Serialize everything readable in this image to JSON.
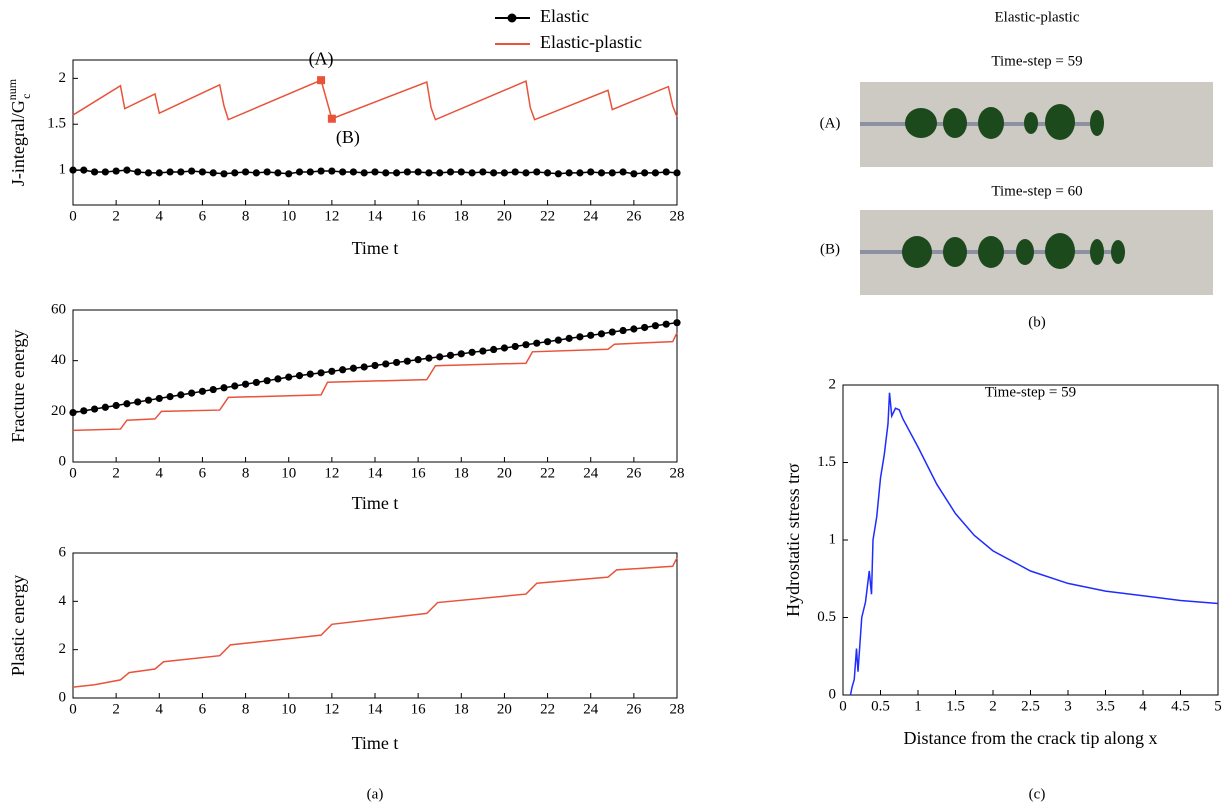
{
  "chart_data": [
    {
      "type": "line",
      "panel": "a",
      "ylabel": {
        "text": "J-integral/G",
        "sub": "c",
        "sup": "num"
      },
      "xlabel": "Time t",
      "xlim": [
        0,
        28
      ],
      "xticks": [
        0,
        2,
        4,
        6,
        8,
        10,
        12,
        14,
        16,
        18,
        20,
        22,
        24,
        26,
        28
      ],
      "ylim": [
        0.62,
        2.2
      ],
      "yticks": [
        1,
        1.5,
        2
      ],
      "legend": true,
      "series": [
        {
          "name": "Elastic",
          "color": "#000000",
          "marker": "circle",
          "x": [
            0,
            0.5,
            1,
            1.5,
            2,
            2.5,
            3,
            3.5,
            4,
            4.5,
            5,
            5.5,
            6,
            6.5,
            7,
            7.5,
            8,
            8.5,
            9,
            9.5,
            10,
            10.5,
            11,
            11.5,
            12,
            12.5,
            13,
            13.5,
            14,
            14.5,
            15,
            15.5,
            16,
            16.5,
            17,
            17.5,
            18,
            18.5,
            19,
            19.5,
            20,
            20.5,
            21,
            21.5,
            22,
            22.5,
            23,
            23.5,
            24,
            24.5,
            25,
            25.5,
            26,
            26.5,
            27,
            27.5,
            28
          ],
          "values": [
            1.0,
            1.0,
            0.98,
            0.98,
            0.99,
            1.0,
            0.98,
            0.97,
            0.97,
            0.98,
            0.98,
            0.99,
            0.98,
            0.97,
            0.96,
            0.97,
            0.98,
            0.97,
            0.98,
            0.97,
            0.96,
            0.98,
            0.98,
            0.99,
            0.99,
            0.98,
            0.98,
            0.97,
            0.98,
            0.97,
            0.97,
            0.98,
            0.98,
            0.97,
            0.97,
            0.98,
            0.98,
            0.97,
            0.98,
            0.97,
            0.97,
            0.98,
            0.97,
            0.98,
            0.97,
            0.96,
            0.97,
            0.97,
            0.98,
            0.97,
            0.97,
            0.98,
            0.96,
            0.97,
            0.97,
            0.98,
            0.97
          ]
        },
        {
          "name": "Elastic-plastic",
          "color": "#e8533a",
          "x": [
            0,
            2.2,
            2.4,
            3.8,
            4.0,
            6.8,
            7.0,
            7.2,
            11.5,
            12.0,
            16.4,
            16.6,
            16.8,
            21.0,
            21.2,
            21.4,
            24.8,
            25.0,
            27.6,
            27.8,
            28
          ],
          "values": [
            1.6,
            1.92,
            1.67,
            1.83,
            1.62,
            1.93,
            1.7,
            1.55,
            1.98,
            1.56,
            1.96,
            1.68,
            1.55,
            1.97,
            1.68,
            1.55,
            1.87,
            1.66,
            1.91,
            1.7,
            1.58
          ]
        }
      ],
      "markers": [
        {
          "label": "(A)",
          "x": 11.5,
          "y": 1.98,
          "color": "#e8533a"
        },
        {
          "label": "(B)",
          "x": 12.0,
          "y": 1.56,
          "color": "#e8533a"
        }
      ]
    },
    {
      "type": "line",
      "panel": "a",
      "ylabel": "Fracture energy",
      "xlabel": "Time t",
      "xlim": [
        0,
        28
      ],
      "xticks": [
        0,
        2,
        4,
        6,
        8,
        10,
        12,
        14,
        16,
        18,
        20,
        22,
        24,
        26,
        28
      ],
      "ylim": [
        0,
        60
      ],
      "yticks": [
        0,
        20,
        40,
        60
      ],
      "series": [
        {
          "color": "#000000",
          "marker": "circle",
          "x": [
            0,
            0.5,
            1,
            1.5,
            2,
            2.5,
            3,
            3.5,
            4,
            4.5,
            5,
            5.5,
            6,
            6.5,
            7,
            7.5,
            8,
            8.5,
            9,
            9.5,
            10,
            10.5,
            11,
            11.5,
            12,
            12.5,
            13,
            13.5,
            14,
            14.5,
            15,
            15.5,
            16,
            16.5,
            17,
            17.5,
            18,
            18.5,
            19,
            19.5,
            20,
            20.5,
            21,
            21.5,
            22,
            22.5,
            23,
            23.5,
            24,
            24.5,
            25,
            25.5,
            26,
            26.5,
            27,
            27.5,
            28
          ],
          "values": [
            19.5,
            20.2,
            20.9,
            21.6,
            22.3,
            23.0,
            23.7,
            24.4,
            25.1,
            25.8,
            26.5,
            27.2,
            27.9,
            28.6,
            29.3,
            30.0,
            30.7,
            31.4,
            32.1,
            32.8,
            33.5,
            34.1,
            34.7,
            35.2,
            35.8,
            36.4,
            37.0,
            37.5,
            38.1,
            38.7,
            39.3,
            39.8,
            40.4,
            41.0,
            41.5,
            42.1,
            42.7,
            43.3,
            43.8,
            44.4,
            45.0,
            45.6,
            46.3,
            46.9,
            47.5,
            48.1,
            48.8,
            49.4,
            50.0,
            50.6,
            51.3,
            51.9,
            52.5,
            53.1,
            53.8,
            54.4,
            55.0
          ]
        },
        {
          "color": "#e8533a",
          "x": [
            0,
            2.2,
            2.5,
            3.8,
            4.1,
            6.8,
            7.2,
            11.5,
            11.8,
            16.4,
            16.8,
            21.0,
            21.3,
            24.8,
            25.1,
            27.8,
            28
          ],
          "values": [
            12.5,
            13,
            16.5,
            17,
            20,
            20.5,
            25.5,
            26.5,
            31.5,
            32.5,
            38,
            39,
            43.5,
            44.5,
            46.5,
            47.5,
            51
          ]
        }
      ]
    },
    {
      "type": "line",
      "panel": "a",
      "ylabel": "Plastic energy",
      "xlabel": "Time t",
      "xlim": [
        0,
        28
      ],
      "xticks": [
        0,
        2,
        4,
        6,
        8,
        10,
        12,
        14,
        16,
        18,
        20,
        22,
        24,
        26,
        28
      ],
      "ylim": [
        0,
        6
      ],
      "yticks": [
        0,
        2,
        4,
        6
      ],
      "series": [
        {
          "color": "#e8533a",
          "x": [
            0,
            1,
            2.2,
            2.6,
            3.8,
            4.2,
            6.8,
            7.3,
            11.5,
            12.0,
            16.4,
            16.9,
            21.0,
            21.5,
            24.8,
            25.2,
            27.8,
            28
          ],
          "values": [
            0.45,
            0.55,
            0.75,
            1.05,
            1.2,
            1.5,
            1.75,
            2.2,
            2.6,
            3.05,
            3.5,
            3.95,
            4.3,
            4.75,
            5.0,
            5.3,
            5.45,
            5.8
          ]
        }
      ]
    },
    {
      "type": "line",
      "panel": "c",
      "annotation": "Time-step = 59",
      "ylabel": "Hydrostatic stress trσ",
      "xlabel": "Distance from the crack tip along x",
      "xlim": [
        0,
        5
      ],
      "xticks": [
        0,
        0.5,
        1,
        1.5,
        2,
        2.5,
        3,
        3.5,
        4,
        4.5,
        5
      ],
      "ylim": [
        0,
        2
      ],
      "yticks": [
        0,
        0.5,
        1,
        1.5,
        2
      ],
      "series": [
        {
          "color": "#1f2cff",
          "x": [
            0.1,
            0.12,
            0.15,
            0.18,
            0.2,
            0.25,
            0.3,
            0.35,
            0.38,
            0.4,
            0.45,
            0.5,
            0.55,
            0.6,
            0.62,
            0.65,
            0.7,
            0.75,
            0.8,
            1.0,
            1.25,
            1.5,
            1.75,
            2.0,
            2.5,
            3.0,
            3.5,
            4.0,
            4.5,
            5.0
          ],
          "values": [
            0,
            0.05,
            0.1,
            0.3,
            0.15,
            0.5,
            0.6,
            0.8,
            0.65,
            1.0,
            1.15,
            1.4,
            1.55,
            1.75,
            1.95,
            1.8,
            1.85,
            1.84,
            1.78,
            1.6,
            1.36,
            1.17,
            1.03,
            0.93,
            0.8,
            0.72,
            0.67,
            0.64,
            0.61,
            0.59
          ]
        }
      ]
    }
  ],
  "panels": {
    "a": {
      "caption": "(a)"
    },
    "b": {
      "title": "Elastic-plastic",
      "frames": [
        {
          "caption": "Time-step = 59",
          "label": "(A)"
        },
        {
          "caption": "Time-step = 60",
          "label": "(B)"
        }
      ],
      "caption": "(b)"
    },
    "c": {
      "caption": "(c)"
    }
  }
}
